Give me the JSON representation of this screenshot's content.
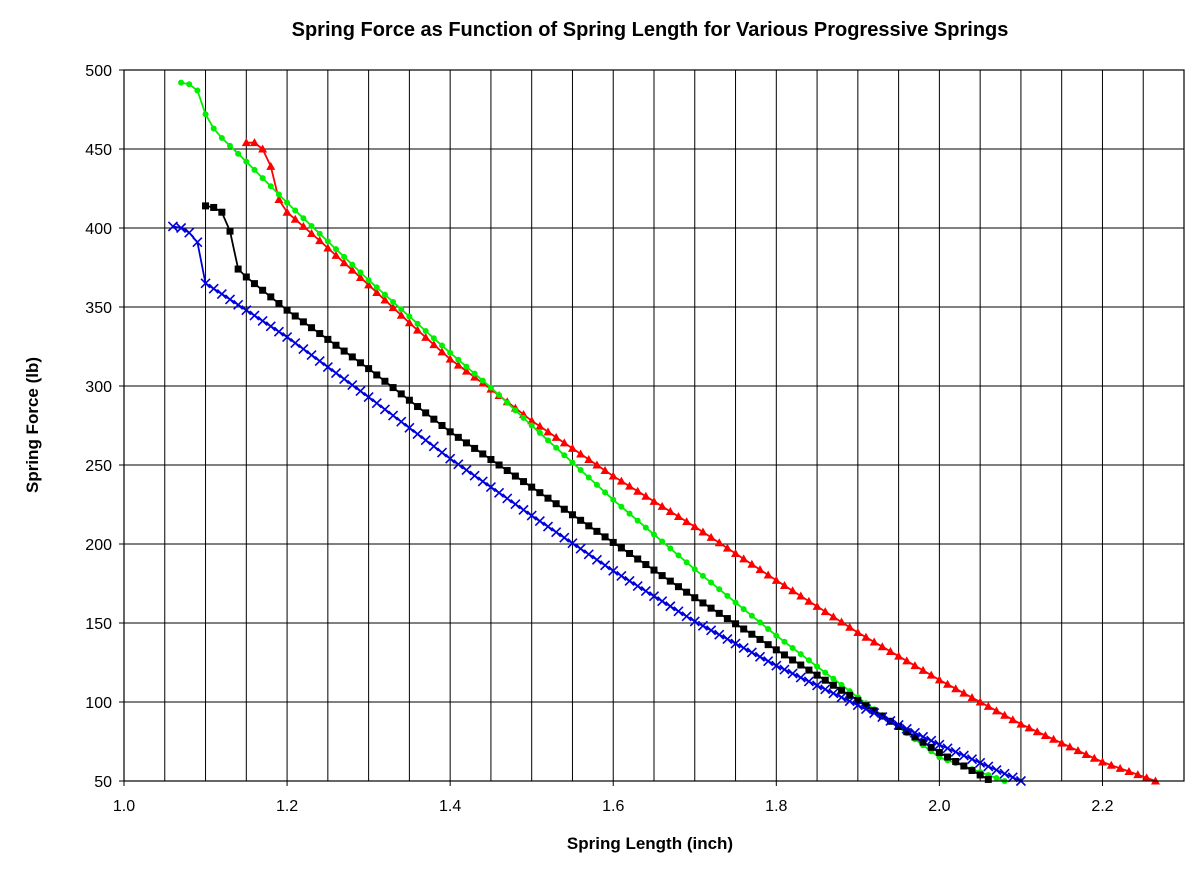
{
  "chart_data": {
    "type": "line",
    "title": "Spring Force as Function of Spring Length for Various Progressive Springs",
    "xlabel": "Spring Length (inch)",
    "ylabel": "Spring Force (lb)",
    "xlim": [
      1.0,
      2.3
    ],
    "ylim": [
      50,
      500
    ],
    "x_ticks": [
      1.0,
      1.2,
      1.4,
      1.6,
      1.8,
      2.0,
      2.2
    ],
    "x_tick_labels": [
      "1.0",
      "1.2",
      "1.4",
      "1.6",
      "1.8",
      "2.0",
      "2.2"
    ],
    "y_ticks": [
      50,
      100,
      150,
      200,
      250,
      300,
      350,
      400,
      450,
      500
    ],
    "y_tick_labels": [
      "50",
      "100",
      "150",
      "200",
      "250",
      "300",
      "350",
      "400",
      "450",
      "500"
    ],
    "grid": true,
    "legend": "none",
    "series": [
      {
        "color": "#ff0000",
        "marker": "triangle",
        "points": [
          [
            1.15,
            454
          ],
          [
            1.16,
            454
          ],
          [
            1.17,
            450
          ],
          [
            1.18,
            439
          ],
          [
            1.19,
            418
          ],
          [
            1.2,
            410
          ],
          [
            1.24,
            392
          ],
          [
            1.3,
            364
          ],
          [
            1.35,
            340
          ],
          [
            1.4,
            317
          ],
          [
            1.45,
            298
          ],
          [
            1.5,
            278
          ],
          [
            1.6,
            243
          ],
          [
            1.7,
            211
          ],
          [
            1.8,
            177
          ],
          [
            1.9,
            144
          ],
          [
            2.0,
            114
          ],
          [
            2.1,
            86
          ],
          [
            2.2,
            62
          ],
          [
            2.265,
            50
          ]
        ]
      },
      {
        "color": "#00ee00",
        "marker": "circle",
        "points": [
          [
            1.07,
            492
          ],
          [
            1.08,
            491
          ],
          [
            1.09,
            487
          ],
          [
            1.1,
            472
          ],
          [
            1.11,
            463
          ],
          [
            1.12,
            457
          ],
          [
            1.15,
            442
          ],
          [
            1.2,
            416
          ],
          [
            1.3,
            367
          ],
          [
            1.4,
            321
          ],
          [
            1.45,
            299
          ],
          [
            1.5,
            275
          ],
          [
            1.6,
            228
          ],
          [
            1.7,
            184
          ],
          [
            1.8,
            142
          ],
          [
            1.9,
            103
          ],
          [
            2.0,
            65
          ],
          [
            2.08,
            50
          ]
        ]
      },
      {
        "color": "#000000",
        "marker": "square",
        "points": [
          [
            1.1,
            414
          ],
          [
            1.11,
            413
          ],
          [
            1.12,
            410
          ],
          [
            1.13,
            398
          ],
          [
            1.14,
            374
          ],
          [
            1.15,
            369
          ],
          [
            1.2,
            348
          ],
          [
            1.3,
            311
          ],
          [
            1.4,
            271
          ],
          [
            1.5,
            236
          ],
          [
            1.6,
            201
          ],
          [
            1.7,
            166
          ],
          [
            1.8,
            133
          ],
          [
            1.9,
            101
          ],
          [
            2.0,
            68
          ],
          [
            2.06,
            51
          ]
        ]
      },
      {
        "color": "#0000dd",
        "marker": "x",
        "points": [
          [
            1.06,
            401
          ],
          [
            1.07,
            400
          ],
          [
            1.08,
            397
          ],
          [
            1.09,
            391
          ],
          [
            1.1,
            365
          ],
          [
            1.2,
            331
          ],
          [
            1.3,
            293
          ],
          [
            1.4,
            254
          ],
          [
            1.5,
            218
          ],
          [
            1.6,
            183
          ],
          [
            1.7,
            151
          ],
          [
            1.8,
            123
          ],
          [
            1.9,
            98
          ],
          [
            2.0,
            73
          ],
          [
            2.1,
            50
          ]
        ]
      }
    ]
  }
}
